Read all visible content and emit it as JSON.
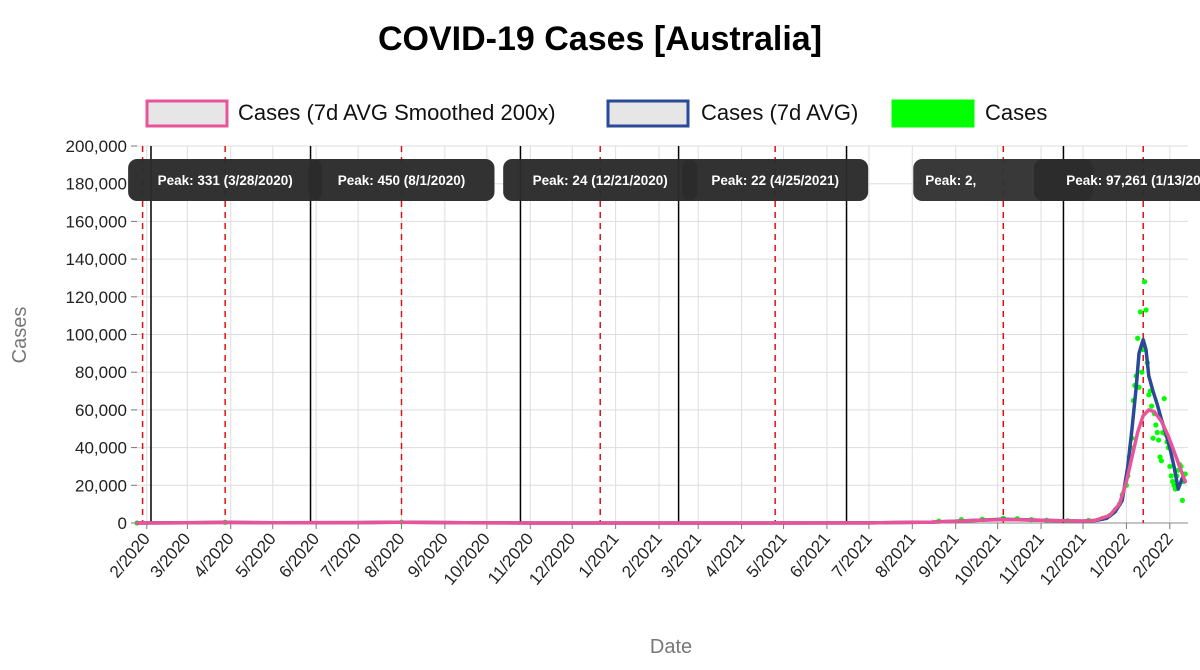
{
  "chart_data": {
    "type": "line",
    "title": "COVID-19 Cases [Australia]",
    "xlabel": "Date",
    "ylabel": "Cases",
    "ylim": [
      0,
      200000
    ],
    "y_ticks": [
      0,
      20000,
      40000,
      60000,
      80000,
      100000,
      120000,
      140000,
      160000,
      180000,
      200000
    ],
    "y_tick_labels": [
      "0",
      "20,000",
      "40,000",
      "60,000",
      "80,000",
      "100,000",
      "120,000",
      "140,000",
      "160,000",
      "180,000",
      "200,000"
    ],
    "x_range": [
      "2020-01-25",
      "2022-02-14"
    ],
    "x_ticks": [
      "2020-02-01",
      "2020-03-01",
      "2020-04-01",
      "2020-05-01",
      "2020-06-01",
      "2020-07-01",
      "2020-08-01",
      "2020-09-01",
      "2020-10-01",
      "2020-11-01",
      "2020-12-01",
      "2021-01-01",
      "2021-02-01",
      "2021-03-01",
      "2021-04-01",
      "2021-05-01",
      "2021-06-01",
      "2021-07-01",
      "2021-08-01",
      "2021-09-01",
      "2021-10-01",
      "2021-11-01",
      "2021-12-01",
      "2022-01-01",
      "2022-02-01"
    ],
    "x_tick_labels": [
      "2/2020",
      "3/2020",
      "4/2020",
      "5/2020",
      "6/2020",
      "7/2020",
      "8/2020",
      "9/2020",
      "10/2020",
      "11/2020",
      "12/2020",
      "1/2021",
      "2/2021",
      "3/2021",
      "4/2021",
      "5/2021",
      "6/2021",
      "7/2021",
      "8/2021",
      "9/2021",
      "10/2021",
      "11/2021",
      "12/2021",
      "1/2022",
      "2/2022"
    ],
    "grid": true,
    "legend_position": "top",
    "series": [
      {
        "name": "Cases (7d AVG Smoothed 200x)",
        "color": "#e8549a",
        "x": [
          "2020-01-25",
          "2020-03-01",
          "2020-03-28",
          "2020-05-01",
          "2020-07-01",
          "2020-08-01",
          "2020-09-15",
          "2020-11-01",
          "2020-12-21",
          "2021-03-01",
          "2021-04-25",
          "2021-07-01",
          "2021-08-15",
          "2021-09-15",
          "2021-10-05",
          "2021-10-25",
          "2021-11-15",
          "2021-12-01",
          "2021-12-10",
          "2021-12-20",
          "2021-12-27",
          "2022-01-01",
          "2022-01-05",
          "2022-01-09",
          "2022-01-13",
          "2022-01-17",
          "2022-01-21",
          "2022-01-26",
          "2022-01-31",
          "2022-02-05",
          "2022-02-10",
          "2022-02-12"
        ],
        "y": [
          0,
          100,
          300,
          100,
          200,
          450,
          100,
          20,
          20,
          20,
          20,
          50,
          500,
          1400,
          1800,
          1600,
          1200,
          1000,
          1500,
          4000,
          10000,
          22000,
          35000,
          48000,
          57000,
          60000,
          59000,
          54000,
          46000,
          36000,
          26000,
          22000
        ]
      },
      {
        "name": "Cases (7d AVG)",
        "color": "#2a4a96",
        "x": [
          "2020-01-25",
          "2020-03-01",
          "2020-03-28",
          "2020-05-01",
          "2020-07-01",
          "2020-08-01",
          "2020-09-15",
          "2020-11-01",
          "2020-12-21",
          "2021-03-01",
          "2021-04-25",
          "2021-07-01",
          "2021-08-15",
          "2021-09-15",
          "2021-10-05",
          "2021-10-25",
          "2021-11-15",
          "2021-12-01",
          "2021-12-10",
          "2021-12-18",
          "2021-12-24",
          "2021-12-29",
          "2022-01-02",
          "2022-01-05",
          "2022-01-08",
          "2022-01-10",
          "2022-01-12",
          "2022-01-13",
          "2022-01-15",
          "2022-01-17",
          "2022-01-20",
          "2022-01-23",
          "2022-01-26",
          "2022-01-29",
          "2022-02-01",
          "2022-02-04",
          "2022-02-07",
          "2022-02-10",
          "2022-02-12"
        ],
        "y": [
          0,
          100,
          330,
          100,
          200,
          450,
          100,
          20,
          24,
          20,
          22,
          50,
          500,
          1400,
          2000,
          1600,
          1200,
          1000,
          1300,
          2500,
          6000,
          12000,
          30000,
          50000,
          72000,
          90000,
          95000,
          97261,
          92000,
          78000,
          70000,
          63000,
          55000,
          48000,
          40000,
          30000,
          18000,
          24000,
          22000
        ]
      },
      {
        "name": "Cases",
        "color": "#00ff00",
        "x": [
          "2020-01-25",
          "2020-03-28",
          "2020-08-01",
          "2021-08-20",
          "2021-09-05",
          "2021-09-20",
          "2021-10-05",
          "2021-10-15",
          "2021-10-25",
          "2021-11-05",
          "2021-11-20",
          "2021-12-05",
          "2021-12-15",
          "2021-12-20",
          "2021-12-24",
          "2021-12-27",
          "2021-12-29",
          "2022-01-01",
          "2022-01-02",
          "2022-01-03",
          "2022-01-04",
          "2022-01-05",
          "2022-01-06",
          "2022-01-07",
          "2022-01-08",
          "2022-01-09",
          "2022-01-10",
          "2022-01-11",
          "2022-01-12",
          "2022-01-13",
          "2022-01-14",
          "2022-01-15",
          "2022-01-16",
          "2022-01-17",
          "2022-01-18",
          "2022-01-19",
          "2022-01-20",
          "2022-01-21",
          "2022-01-22",
          "2022-01-23",
          "2022-01-24",
          "2022-01-25",
          "2022-01-26",
          "2022-01-27",
          "2022-01-28",
          "2022-01-29",
          "2022-01-30",
          "2022-01-31",
          "2022-02-01",
          "2022-02-02",
          "2022-02-03",
          "2022-02-04",
          "2022-02-05",
          "2022-02-06",
          "2022-02-07",
          "2022-02-08",
          "2022-02-09",
          "2022-02-10",
          "2022-02-11",
          "2022-02-12"
        ],
        "y": [
          0,
          400,
          500,
          1000,
          1800,
          2000,
          2500,
          2300,
          1800,
          1500,
          1200,
          1400,
          2500,
          4000,
          7000,
          10000,
          15000,
          20000,
          25000,
          35000,
          40000,
          45000,
          65000,
          73000,
          78000,
          98000,
          72000,
          112000,
          80000,
          92000,
          128000,
          113000,
          85000,
          68000,
          70000,
          62000,
          45000,
          58000,
          52000,
          48000,
          44000,
          35000,
          33000,
          48000,
          66000,
          47000,
          43000,
          40000,
          30000,
          25000,
          22000,
          20000,
          18000,
          25000,
          28000,
          31000,
          30000,
          12000,
          22000,
          26000
        ]
      }
    ],
    "event_lines": [
      {
        "date": "2020-01-29",
        "style": "red-dashed"
      },
      {
        "date": "2020-02-04",
        "style": "black-solid"
      },
      {
        "date": "2020-03-28",
        "style": "red-dashed"
      },
      {
        "date": "2020-05-28",
        "style": "black-solid"
      },
      {
        "date": "2020-08-01",
        "style": "red-dashed"
      },
      {
        "date": "2020-10-25",
        "style": "black-solid"
      },
      {
        "date": "2020-12-21",
        "style": "red-dashed"
      },
      {
        "date": "2021-02-15",
        "style": "black-solid"
      },
      {
        "date": "2021-04-25",
        "style": "red-dashed"
      },
      {
        "date": "2021-06-15",
        "style": "black-solid"
      },
      {
        "date": "2021-10-05",
        "style": "red-dashed"
      },
      {
        "date": "2021-11-17",
        "style": "black-solid"
      },
      {
        "date": "2022-01-13",
        "style": "red-dashed"
      }
    ],
    "annotations": [
      {
        "text": "Peak: 331 (3/28/2020)",
        "x": "2020-03-28"
      },
      {
        "text": "Peak: 450 (8/1/2020)",
        "x": "2020-08-01"
      },
      {
        "text": "Peak: 24 (12/21/2020)",
        "x": "2020-12-21"
      },
      {
        "text": "Peak: 22 (4/25/2021)",
        "x": "2021-04-25"
      },
      {
        "text": "Peak: 2,",
        "x": "2021-10-05",
        "partially_hidden": true
      },
      {
        "text": "Peak: 97,261 (1/13/2022)",
        "x": "2022-01-13"
      }
    ]
  }
}
